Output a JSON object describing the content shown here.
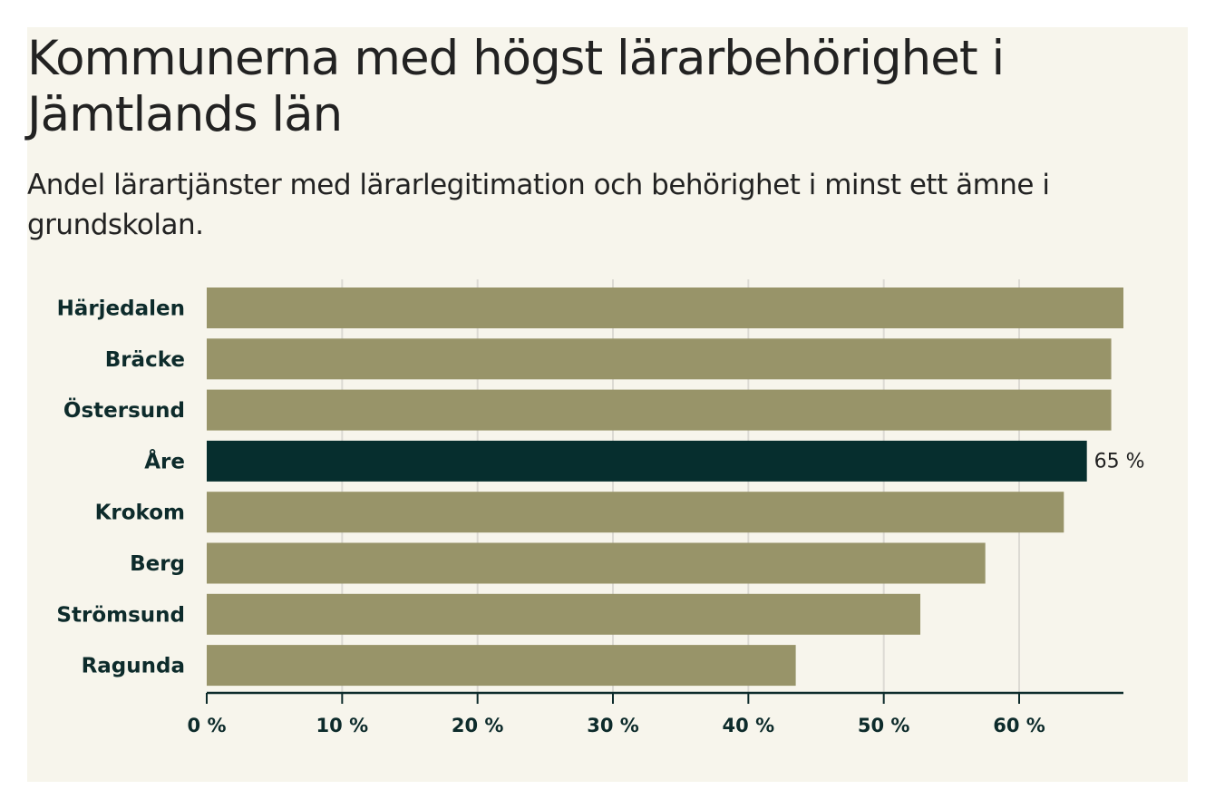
{
  "chart_data": {
    "type": "bar",
    "orientation": "horizontal",
    "title": "Kommunerna med högst lärarbehörighet i Jämtlands län",
    "subtitle": "Andel lärartjänster med lärarlegitimation och behörighet i minst ett ämne i grundskolan.",
    "categories": [
      "Härjedalen",
      "Bräcke",
      "Östersund",
      "Åre",
      "Krokom",
      "Berg",
      "Strömsund",
      "Ragunda"
    ],
    "values": [
      67.7,
      66.8,
      66.8,
      65,
      63.3,
      57.5,
      52.7,
      43.5
    ],
    "highlight": "Åre",
    "highlight_label": "65 %",
    "xlim": [
      0,
      67.7
    ],
    "xticks": [
      0,
      10,
      20,
      30,
      40,
      50,
      60
    ],
    "xtick_labels": [
      "0 %",
      "10 %",
      "20 %",
      "30 %",
      "40 %",
      "50 %",
      "60 %"
    ],
    "xlabel": "",
    "ylabel": "",
    "grid": "vertical",
    "colors": {
      "bar": "#989469",
      "highlight": "#062e2e",
      "grid": "#dcdad3",
      "axis": "#0d2b2b",
      "background": "#f7f5ec"
    }
  }
}
